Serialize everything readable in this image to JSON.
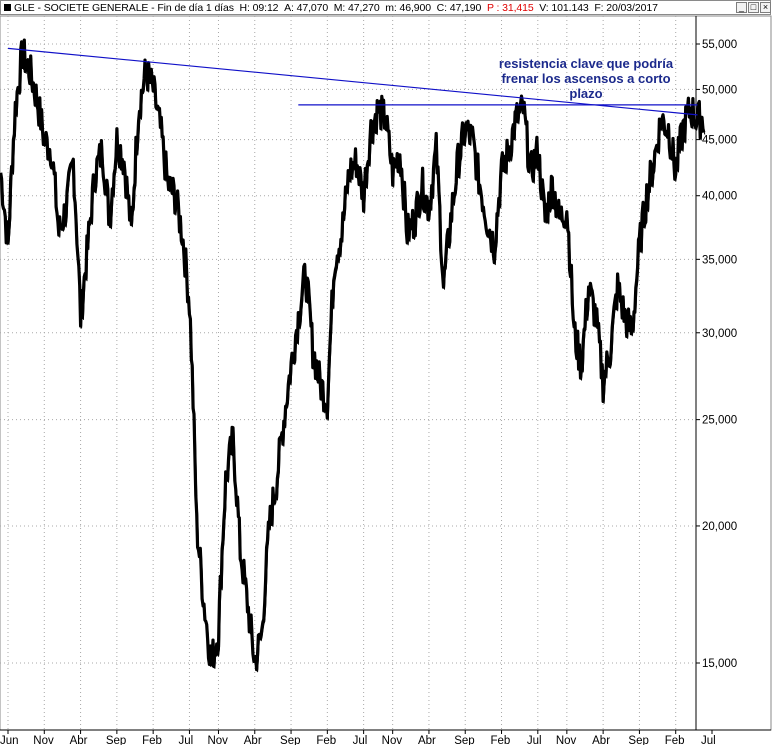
{
  "window": {
    "title_prefix": "GLE - SOCIETE GENERALE - Fin de día 1 días",
    "h_label": "H: 09:12",
    "a_label": "A: 47,070",
    "m_label": "M: 47,270",
    "mlow_label": "m: 46,900",
    "c_label": "C: 47,190",
    "p_label": "P : 31,415",
    "v_label": "V: 101.143",
    "f_label": "F: 20/03/2017",
    "buttons": {
      "minimize": "_",
      "restore": "□",
      "close": "×"
    }
  },
  "colors": {
    "price": "#000000",
    "trendline": "#1010c8",
    "annotation": "#1c2a8c",
    "grid": "#a8a8a8",
    "highlight": "#e00000"
  },
  "chart_data": {
    "type": "line",
    "scale": "log",
    "grid": true,
    "y_ticks": [
      "55,000",
      "50,000",
      "45,000",
      "40,000",
      "35,000",
      "30,000",
      "25,000",
      "20,000",
      "15,000"
    ],
    "y_tick_values": [
      55,
      50,
      45,
      40,
      35,
      30,
      25,
      20,
      15
    ],
    "x_ticks": [
      "Jun",
      "Nov",
      "Abr",
      "Sep",
      "Feb",
      "Jul",
      "Nov",
      "Abr",
      "Sep",
      "Feb",
      "Jul",
      "Nov",
      "Abr",
      "Sep",
      "Feb",
      "Jul",
      "Nov",
      "Abr",
      "Sep",
      "Feb",
      "Jul"
    ],
    "x_tick_dates": [
      "2007-06",
      "2007-11",
      "2008-04",
      "2008-09",
      "2009-02",
      "2009-07",
      "2009-11",
      "2010-04",
      "2010-09",
      "2011-02",
      "2011-07",
      "2011-11",
      "2012-04",
      "2012-09",
      "2013-02",
      "2013-07",
      "2013-11",
      "2014-04",
      "2014-09",
      "2015-02",
      "2015-07"
    ],
    "series": [
      {
        "x": [
          "2007-05",
          "2007-06",
          "2007-07",
          "2007-08",
          "2007-09",
          "2007-10",
          "2007-11",
          "2007-12",
          "2008-01",
          "2008-02",
          "2008-03",
          "2008-04",
          "2008-05",
          "2008-06",
          "2008-07",
          "2008-08",
          "2008-09",
          "2008-10",
          "2008-11",
          "2008-12",
          "2009-01",
          "2009-02",
          "2009-03",
          "2009-04",
          "2009-05",
          "2009-06",
          "2009-07",
          "2009-08",
          "2009-09",
          "2009-10",
          "2009-11",
          "2009-12",
          "2010-01",
          "2010-02",
          "2010-03",
          "2010-04",
          "2010-05",
          "2010-06",
          "2010-07",
          "2010-08",
          "2010-09",
          "2010-10",
          "2010-11",
          "2010-12",
          "2011-01",
          "2011-02",
          "2011-03",
          "2011-04",
          "2011-05",
          "2011-06",
          "2011-07",
          "2011-08",
          "2011-09",
          "2011-10",
          "2011-11",
          "2011-12",
          "2012-01",
          "2012-02",
          "2012-03",
          "2012-04",
          "2012-05",
          "2012-06",
          "2012-07",
          "2012-08",
          "2012-09",
          "2012-10",
          "2012-11",
          "2012-12",
          "2013-01",
          "2013-02",
          "2013-03",
          "2013-04",
          "2013-05",
          "2013-06",
          "2013-07",
          "2013-08",
          "2013-09",
          "2013-10",
          "2013-11",
          "2013-12",
          "2014-01",
          "2014-02",
          "2014-03",
          "2014-04",
          "2014-05",
          "2014-06",
          "2014-07",
          "2014-08",
          "2014-09",
          "2014-10",
          "2014-11",
          "2014-12",
          "2015-01",
          "2015-02",
          "2015-03",
          "2015-04",
          "2015-05"
        ],
        "y": [
          42,
          36,
          48,
          54,
          52,
          49,
          45,
          44,
          37,
          39,
          43,
          31,
          36,
          42,
          44,
          38,
          45,
          43,
          37,
          48,
          52,
          50,
          46,
          41,
          40,
          37,
          32,
          20,
          17,
          15,
          16,
          22,
          24,
          19,
          17,
          15,
          16,
          20,
          22,
          25,
          28,
          31,
          34,
          29,
          27,
          26,
          35,
          37,
          42,
          43,
          40,
          46,
          48,
          47,
          42,
          44,
          37,
          38,
          41,
          39,
          44,
          33,
          38,
          43,
          46,
          45,
          41,
          38,
          36,
          42,
          44,
          47,
          48,
          42,
          44,
          38,
          41,
          38,
          39,
          30,
          28,
          33,
          31,
          27,
          29,
          33,
          31,
          30,
          36,
          40,
          43,
          47,
          46,
          42,
          46,
          48,
          47
        ]
      }
    ],
    "trendlines": [
      {
        "from": [
          "2007-06",
          54.5
        ],
        "to": [
          "2015-05",
          47.4
        ]
      },
      {
        "from": [
          "2010-10",
          48.4
        ],
        "to": [
          "2015-05",
          48.4
        ]
      }
    ],
    "annotations": [
      {
        "lines": [
          "resistencia clave que podría",
          "frenar los ascensos a corto",
          "plazo"
        ]
      }
    ]
  }
}
